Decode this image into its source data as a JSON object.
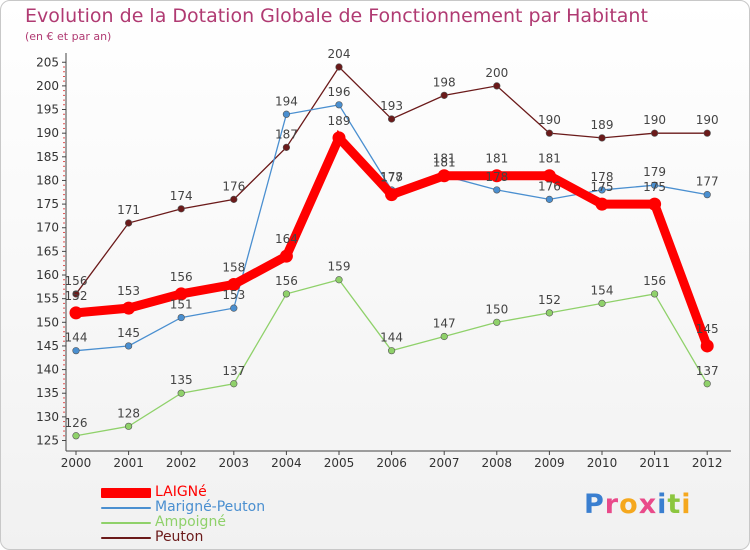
{
  "header": {
    "title": "Evolution de la Dotation Globale de Fonctionnement par Habitant",
    "subtitle": "(en € et par an)"
  },
  "chart_data": {
    "type": "line",
    "title": "Evolution de la Dotation Globale de Fonctionnement par Habitant",
    "subtitle": "(en € et par an)",
    "xlabel": "",
    "ylabel": "",
    "x": [
      "2000",
      "2001",
      "2002",
      "2003",
      "2004",
      "2005",
      "2006",
      "2007",
      "2008",
      "2009",
      "2010",
      "2011",
      "2012"
    ],
    "yticks": [
      125,
      130,
      135,
      140,
      145,
      150,
      155,
      160,
      165,
      170,
      175,
      180,
      185,
      190,
      195,
      200,
      205
    ],
    "ylim": [
      124,
      206
    ],
    "grid": false,
    "legend_position": "bottom-left",
    "series": [
      {
        "name": "Peuton",
        "color": "#6b1a1a",
        "width": "thin",
        "values": [
          156,
          171,
          174,
          176,
          187,
          204,
          193,
          198,
          200,
          190,
          189,
          190,
          190
        ],
        "labels": [
          "156",
          "171",
          "174",
          "176",
          "187",
          "204",
          "193",
          "198",
          "200",
          "190",
          "189",
          "190",
          "190"
        ]
      },
      {
        "name": "Ampoigné",
        "color": "#8fd16a",
        "width": "thin",
        "values": [
          126,
          128,
          135,
          137,
          156,
          159,
          144,
          147,
          150,
          152,
          154,
          156,
          137
        ],
        "labels": [
          "126",
          "128",
          "135",
          "137",
          "156",
          "159",
          "144",
          "147",
          "150",
          "152",
          "154",
          "156",
          "137"
        ]
      },
      {
        "name": "Marigné-Peuton",
        "color": "#4a8fd0",
        "width": "thin",
        "values": [
          144,
          145,
          151,
          153,
          194,
          196,
          178,
          181,
          178,
          176,
          178,
          179,
          177
        ],
        "labels": [
          "144",
          "145",
          "151",
          "153",
          "194",
          "196",
          "178",
          "181",
          "178",
          "176",
          "178",
          "179",
          "177"
        ]
      },
      {
        "name": "LAIGNé",
        "color": "#ff0000",
        "width": "thick",
        "values": [
          152,
          153,
          156,
          158,
          164,
          189,
          177,
          181,
          181,
          181,
          175,
          175,
          145
        ],
        "labels": [
          "152",
          "153",
          "156",
          "158",
          "164",
          "189",
          "177",
          "181",
          "181",
          "181",
          "175",
          "175",
          "145"
        ]
      }
    ]
  },
  "legend": {
    "items": [
      {
        "label": "LAIGNé",
        "color": "#ff0000",
        "thickness": "thick"
      },
      {
        "label": "Marigné-Peuton",
        "color": "#4a8fd0",
        "thickness": "thin"
      },
      {
        "label": "Ampoigné",
        "color": "#8fd16a",
        "thickness": "thin"
      },
      {
        "label": "Peuton",
        "color": "#6b1a1a",
        "thickness": "thin"
      }
    ]
  },
  "logo": {
    "text": "Proxiti",
    "letters": [
      {
        "char": "P",
        "color": "#3a7fd0"
      },
      {
        "char": "r",
        "color": "#e94a8a"
      },
      {
        "char": "o",
        "color": "#f5a81e"
      },
      {
        "char": "x",
        "color": "#e94a8a"
      },
      {
        "char": "i",
        "color": "#3a7fd0"
      },
      {
        "char": "t",
        "color": "#8cc63f"
      },
      {
        "char": "i",
        "color": "#f5a81e"
      }
    ]
  }
}
